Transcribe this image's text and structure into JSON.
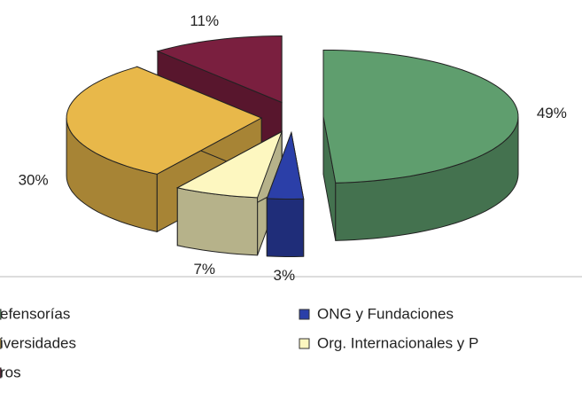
{
  "chart_data": {
    "type": "pie3d",
    "series": [
      {
        "name": "efensorías",
        "color": "#5f9e6e"
      },
      {
        "name": "ONG y Fundaciones",
        "color": "#2b3fa8"
      },
      {
        "name": "Org. Internacionales y P",
        "color": "#fdf7c0"
      },
      {
        "name": "iversidades",
        "color": "#e8b84a"
      },
      {
        "name": "ros",
        "color": "#7a1f3f"
      }
    ],
    "values": [
      49,
      3,
      7,
      30,
      11
    ],
    "value_labels": [
      "49%",
      "3%",
      "7%",
      "30%",
      "11%"
    ]
  }
}
